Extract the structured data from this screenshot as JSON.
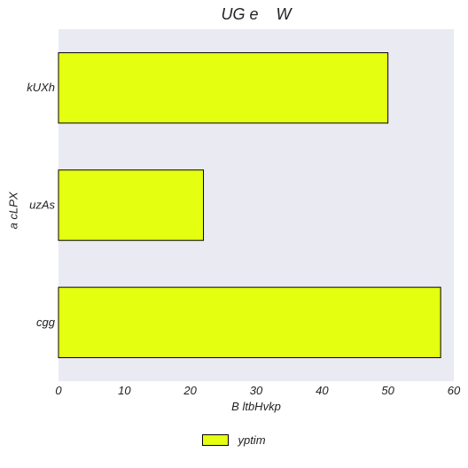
{
  "chart_data": {
    "type": "bar",
    "orientation": "horizontal",
    "title": "UG e    W",
    "xlabel": "B ltbHvkp",
    "ylabel": "a cLPX",
    "categories": [
      "kUXh",
      "uzAs",
      "cgg"
    ],
    "series": [
      {
        "name": "yptim",
        "values": [
          50,
          22,
          58
        ],
        "color": "#e5ff10"
      }
    ],
    "xlim": [
      0,
      60
    ],
    "xticks": [
      "0",
      "10",
      "20",
      "30",
      "40",
      "50",
      "60"
    ],
    "grid": false,
    "plot_background": "#e9eaf2",
    "legend_position": "bottom-center"
  }
}
